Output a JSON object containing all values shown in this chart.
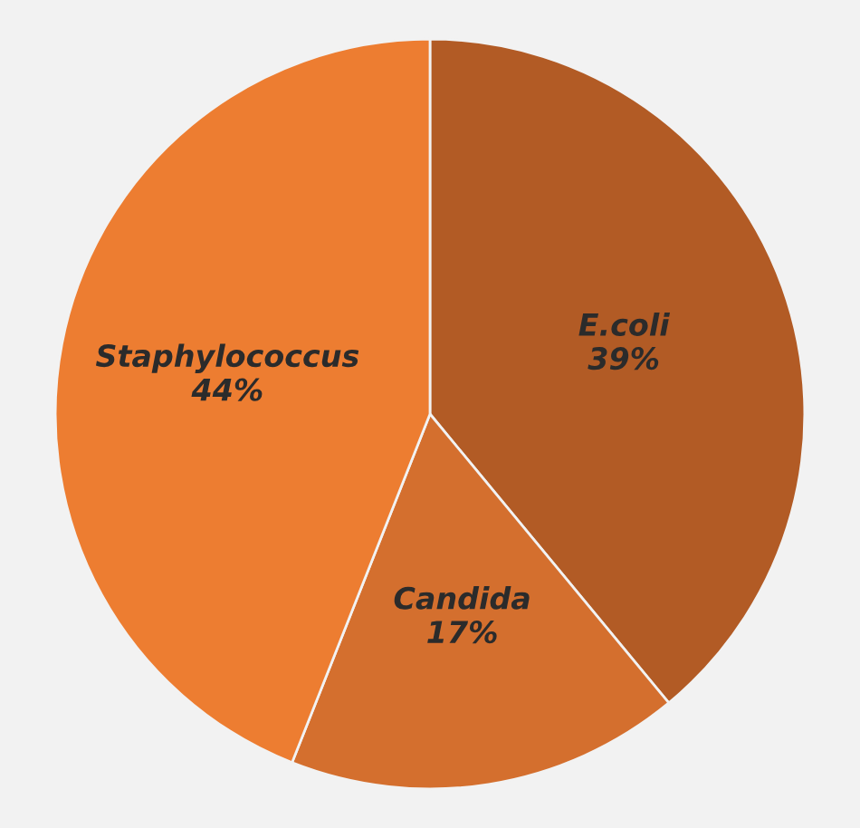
{
  "chart_data": {
    "type": "pie",
    "categories": [
      "E.coli",
      "Candida",
      "Staphylococcus"
    ],
    "values": [
      39,
      17,
      44
    ],
    "colors": [
      "#b25b25",
      "#d46f2e",
      "#ed7d31"
    ],
    "value_labels": [
      "39%",
      "17%",
      "44%"
    ]
  }
}
